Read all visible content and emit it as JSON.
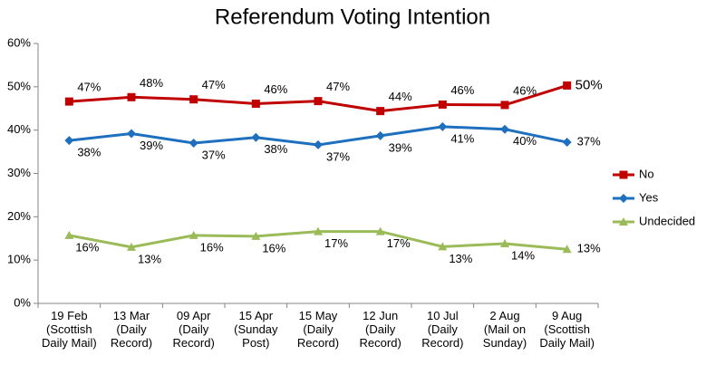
{
  "chart_data": {
    "type": "line",
    "title": "Referendum Voting Intention",
    "categories": [
      "19 Feb\n(Scottish\nDaily Mail)",
      "13 Mar\n(Daily\nRecord)",
      "09 Apr\n(Daily\nRecord)",
      "15 Apr\n(Sunday\nPost)",
      "15 May\n(Daily\nRecord)",
      "12 Jun\n(Daily\nRecord)",
      "10 Jul\n(Daily\nRecord)",
      "2 Aug\n(Mail on\nSunday)",
      "9 Aug\n(Scottish\nDaily Mail)"
    ],
    "series": [
      {
        "name": "No",
        "color": "#c00000",
        "marker": "square",
        "values": [
          46.6,
          47.6,
          47.1,
          46.1,
          46.7,
          44.4,
          45.9,
          45.8,
          50.3
        ],
        "value_labels": [
          "47%",
          "48%",
          "47%",
          "46%",
          "47%",
          "44%",
          "46%",
          "46%",
          "50%"
        ]
      },
      {
        "name": "Yes",
        "color": "#1f6fbf",
        "marker": "diamond",
        "values": [
          37.6,
          39.2,
          37.0,
          38.3,
          36.6,
          38.7,
          40.8,
          40.2,
          37.2
        ],
        "value_labels": [
          "38%",
          "39%",
          "37%",
          "38%",
          "37%",
          "39%",
          "41%",
          "40%",
          "37%"
        ]
      },
      {
        "name": "Undecided",
        "color": "#9bbb59",
        "marker": "triangle",
        "values": [
          15.7,
          13.0,
          15.7,
          15.5,
          16.6,
          16.6,
          13.1,
          13.8,
          12.5
        ],
        "value_labels": [
          "16%",
          "13%",
          "16%",
          "16%",
          "17%",
          "17%",
          "13%",
          "14%",
          "13%"
        ]
      }
    ],
    "ylim": [
      0,
      60
    ],
    "yticks": [
      {
        "value": 0,
        "label": "0%"
      },
      {
        "value": 10,
        "label": "10%"
      },
      {
        "value": 20,
        "label": "20%"
      },
      {
        "value": 30,
        "label": "30%"
      },
      {
        "value": 40,
        "label": "40%"
      },
      {
        "value": 50,
        "label": "50%"
      },
      {
        "value": 60,
        "label": "60%"
      }
    ],
    "legend": "right"
  }
}
